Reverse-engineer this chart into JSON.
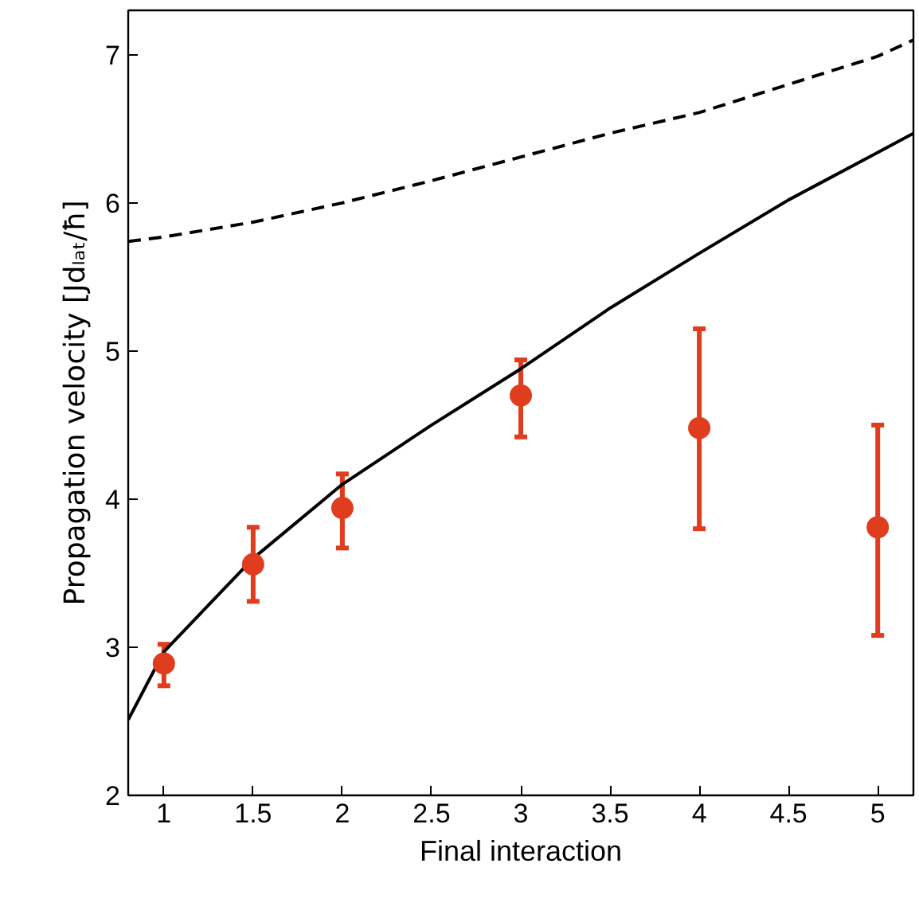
{
  "chart_data": {
    "type": "scatter",
    "xlabel": "Final interaction",
    "ylabel": "Propagation velocity [Jdₗₐₜ/ħ]",
    "xlim": [
      0.8,
      5.2
    ],
    "ylim": [
      2,
      7.3
    ],
    "xticks": [
      1,
      1.5,
      2,
      2.5,
      3,
      3.5,
      4,
      4.5,
      5
    ],
    "yticks": [
      2,
      3,
      4,
      5,
      6,
      7
    ],
    "grid": false,
    "series": [
      {
        "type": "line",
        "color": "#000000",
        "line_style": "dashed",
        "x": [
          0.8,
          1,
          1.5,
          2,
          2.5,
          3,
          3.5,
          4,
          4.5,
          5,
          5.2
        ],
        "values": [
          5.74,
          5.77,
          5.87,
          6.0,
          6.15,
          6.31,
          6.47,
          6.61,
          6.8,
          6.99,
          7.1
        ]
      },
      {
        "type": "line",
        "color": "#000000",
        "line_style": "solid",
        "x": [
          0.8,
          1,
          1.5,
          2,
          2.5,
          3,
          3.5,
          4,
          4.5,
          5,
          5.2
        ],
        "values": [
          2.51,
          2.97,
          3.6,
          4.1,
          4.5,
          4.88,
          5.29,
          5.66,
          6.02,
          6.34,
          6.47
        ]
      },
      {
        "color": "#e03c1e",
        "marker": "circle",
        "x": [
          1,
          1.5,
          2,
          3,
          4,
          5
        ],
        "values": [
          2.89,
          3.56,
          3.94,
          4.7,
          4.48,
          3.81
        ],
        "errors": [
          [
            2.74,
            3.02
          ],
          [
            3.31,
            3.81
          ],
          [
            3.67,
            4.17
          ],
          [
            4.42,
            4.94
          ],
          [
            3.8,
            5.15
          ],
          [
            3.08,
            4.5
          ]
        ]
      }
    ]
  }
}
